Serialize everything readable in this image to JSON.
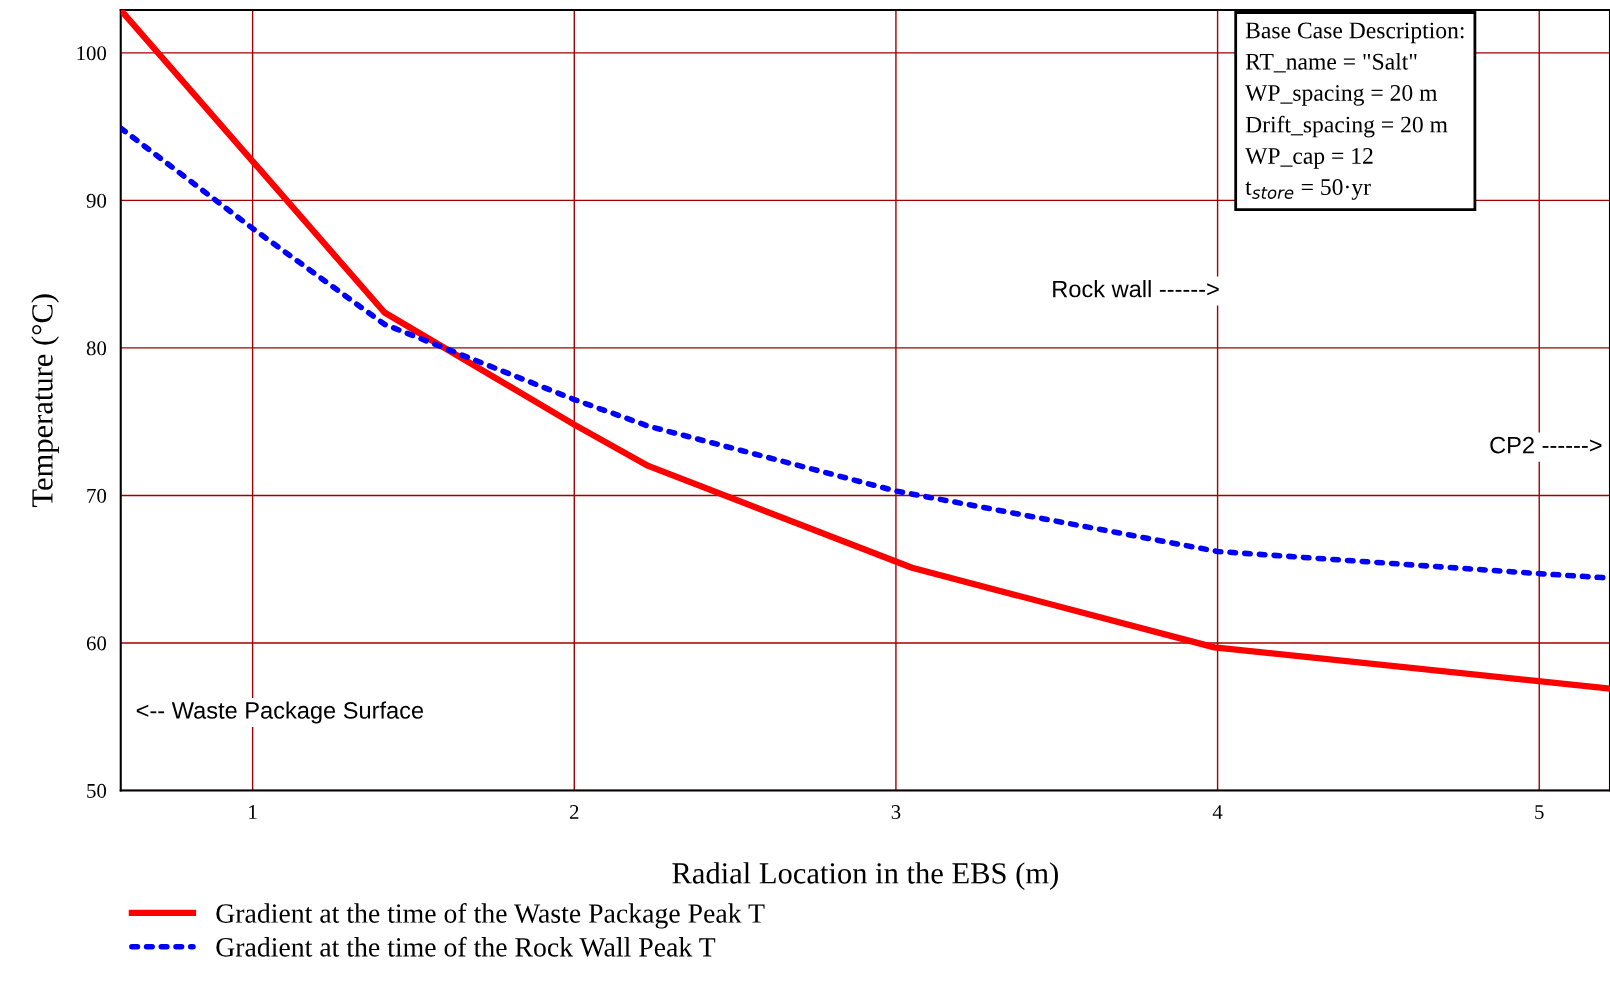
{
  "chart_data": {
    "type": "line",
    "xlabel": "Radial Location in the EBS (m)",
    "ylabel": "Temperature (°C)",
    "xlim": [
      0.59,
      5.22
    ],
    "ylim": [
      50,
      102.9
    ],
    "xticks": [
      1,
      2,
      3,
      4,
      5
    ],
    "yticks": [
      50,
      60,
      70,
      80,
      90,
      100
    ],
    "grid": true,
    "legend": "bottom",
    "marker": "none",
    "series": [
      {
        "name": "Gradient at the time of the Waste Package Peak T",
        "color": "#ff0000",
        "line_style": "solid",
        "x": [
          0.59,
          1.41,
          2.0,
          2.23,
          3.05,
          3.99,
          5.22
        ],
        "values": [
          102.9,
          82.4,
          74.8,
          72.0,
          65.1,
          59.7,
          56.9
        ]
      },
      {
        "name": "Gradient at the time of the Rock Wall Peak T",
        "color": "#0000ff",
        "line_style": "dotted",
        "x": [
          0.59,
          1.0,
          1.41,
          2.0,
          2.23,
          3.0,
          4.0,
          5.0,
          5.22
        ],
        "values": [
          94.9,
          88.1,
          81.6,
          76.5,
          74.7,
          70.3,
          66.2,
          64.7,
          64.4
        ]
      }
    ],
    "annotations": [
      "Rock wall ------>",
      "CP2 ------>",
      "<-- Waste Package Surface",
      "Base Case Description:\nRT_name = \"Salt\"\nWP_spacing = 20 m\nDrift_spacing = 20 m\nWP_cap = 12\nt$_{store}$ = 50·yr"
    ]
  }
}
